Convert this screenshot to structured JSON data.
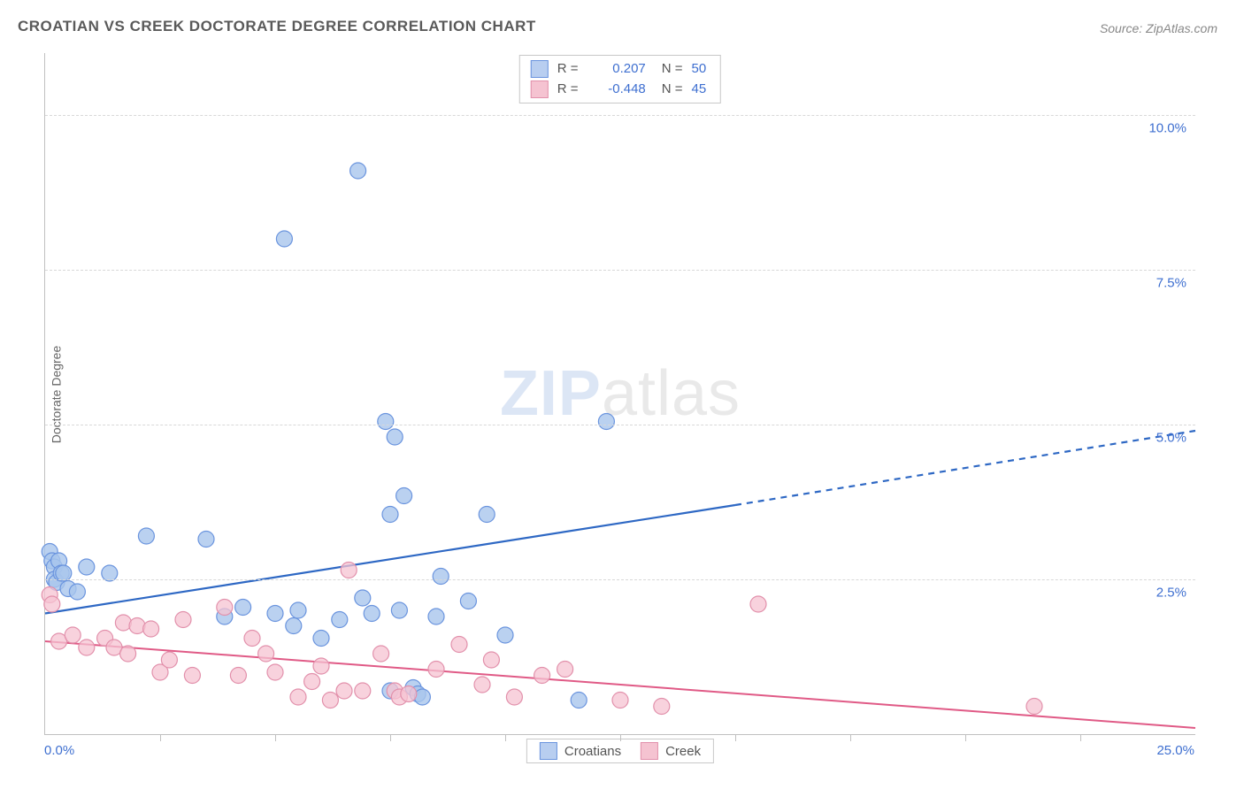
{
  "title": "CROATIAN VS CREEK DOCTORATE DEGREE CORRELATION CHART",
  "source_label": "Source:",
  "source_name": "ZipAtlas.com",
  "ylabel": "Doctorate Degree",
  "watermark_bold": "ZIP",
  "watermark_light": "atlas",
  "chart": {
    "type": "scatter_with_regression",
    "background_color": "#ffffff",
    "grid_color": "#d8d8d8",
    "axis_color": "#c0c0c0",
    "text_color": "#5a5a5a",
    "value_color": "#3e6fd0",
    "xlim": [
      0.0,
      25.0
    ],
    "ylim": [
      0.0,
      11.0
    ],
    "xlabel_min": "0.0%",
    "xlabel_max": "25.0%",
    "yticks": [
      {
        "v": 2.5,
        "label": "2.5%"
      },
      {
        "v": 5.0,
        "label": "5.0%"
      },
      {
        "v": 7.5,
        "label": "7.5%"
      },
      {
        "v": 10.0,
        "label": "10.0%"
      }
    ],
    "xticks_minor": [
      2.5,
      5.0,
      7.5,
      10.0,
      12.5,
      15.0,
      17.5,
      20.0,
      22.5
    ],
    "series": [
      {
        "name": "Croatians",
        "fill": "#a9c5ec",
        "stroke": "#6a94de",
        "line_color": "#2e68c4",
        "marker_radius": 9,
        "marker_opacity": 0.8,
        "line_width": 2.2,
        "R": "0.207",
        "N": "50",
        "reg_start": [
          0.0,
          1.95
        ],
        "reg_solid_end": [
          15.0,
          3.7
        ],
        "reg_dash_end": [
          25.0,
          4.9
        ],
        "points": [
          [
            0.1,
            2.95
          ],
          [
            0.15,
            2.8
          ],
          [
            0.2,
            2.7
          ],
          [
            0.2,
            2.5
          ],
          [
            0.25,
            2.45
          ],
          [
            0.3,
            2.8
          ],
          [
            0.35,
            2.6
          ],
          [
            0.4,
            2.6
          ],
          [
            0.5,
            2.35
          ],
          [
            0.7,
            2.3
          ],
          [
            0.9,
            2.7
          ],
          [
            1.4,
            2.6
          ],
          [
            2.2,
            3.2
          ],
          [
            3.5,
            3.15
          ],
          [
            3.9,
            1.9
          ],
          [
            4.3,
            2.05
          ],
          [
            5.0,
            1.95
          ],
          [
            5.2,
            8.0
          ],
          [
            5.4,
            1.75
          ],
          [
            5.5,
            2.0
          ],
          [
            6.0,
            1.55
          ],
          [
            6.4,
            1.85
          ],
          [
            6.8,
            9.1
          ],
          [
            6.9,
            2.2
          ],
          [
            7.1,
            1.95
          ],
          [
            7.4,
            5.05
          ],
          [
            7.5,
            3.55
          ],
          [
            7.5,
            0.7
          ],
          [
            7.6,
            4.8
          ],
          [
            7.7,
            2.0
          ],
          [
            7.8,
            3.85
          ],
          [
            8.0,
            0.75
          ],
          [
            8.1,
            0.65
          ],
          [
            8.2,
            0.6
          ],
          [
            8.5,
            1.9
          ],
          [
            8.6,
            2.55
          ],
          [
            9.2,
            2.15
          ],
          [
            9.6,
            3.55
          ],
          [
            10.0,
            1.6
          ],
          [
            11.6,
            0.55
          ],
          [
            12.2,
            5.05
          ]
        ]
      },
      {
        "name": "Creek",
        "fill": "#f5c3d1",
        "stroke": "#e290ab",
        "line_color": "#e05a86",
        "marker_radius": 9,
        "marker_opacity": 0.75,
        "line_width": 2.0,
        "R": "-0.448",
        "N": "45",
        "reg_start": [
          0.0,
          1.5
        ],
        "reg_solid_end": [
          25.0,
          0.1
        ],
        "reg_dash_end": [
          25.0,
          0.1
        ],
        "points": [
          [
            0.1,
            2.25
          ],
          [
            0.15,
            2.1
          ],
          [
            0.3,
            1.5
          ],
          [
            0.6,
            1.6
          ],
          [
            0.9,
            1.4
          ],
          [
            1.3,
            1.55
          ],
          [
            1.5,
            1.4
          ],
          [
            1.7,
            1.8
          ],
          [
            1.8,
            1.3
          ],
          [
            2.0,
            1.75
          ],
          [
            2.3,
            1.7
          ],
          [
            2.5,
            1.0
          ],
          [
            2.7,
            1.2
          ],
          [
            3.0,
            1.85
          ],
          [
            3.2,
            0.95
          ],
          [
            3.9,
            2.05
          ],
          [
            4.2,
            0.95
          ],
          [
            4.5,
            1.55
          ],
          [
            4.8,
            1.3
          ],
          [
            5.0,
            1.0
          ],
          [
            5.5,
            0.6
          ],
          [
            5.8,
            0.85
          ],
          [
            6.0,
            1.1
          ],
          [
            6.2,
            0.55
          ],
          [
            6.5,
            0.7
          ],
          [
            6.6,
            2.65
          ],
          [
            6.9,
            0.7
          ],
          [
            7.3,
            1.3
          ],
          [
            7.6,
            0.7
          ],
          [
            7.7,
            0.6
          ],
          [
            7.9,
            0.65
          ],
          [
            8.5,
            1.05
          ],
          [
            9.0,
            1.45
          ],
          [
            9.5,
            0.8
          ],
          [
            9.7,
            1.2
          ],
          [
            10.2,
            0.6
          ],
          [
            10.8,
            0.95
          ],
          [
            11.3,
            1.05
          ],
          [
            12.5,
            0.55
          ],
          [
            13.4,
            0.45
          ],
          [
            15.5,
            2.1
          ],
          [
            21.5,
            0.45
          ]
        ]
      }
    ],
    "legend_bottom": [
      {
        "label": "Croatians",
        "swatch": "blue"
      },
      {
        "label": "Creek",
        "swatch": "pink"
      }
    ]
  }
}
